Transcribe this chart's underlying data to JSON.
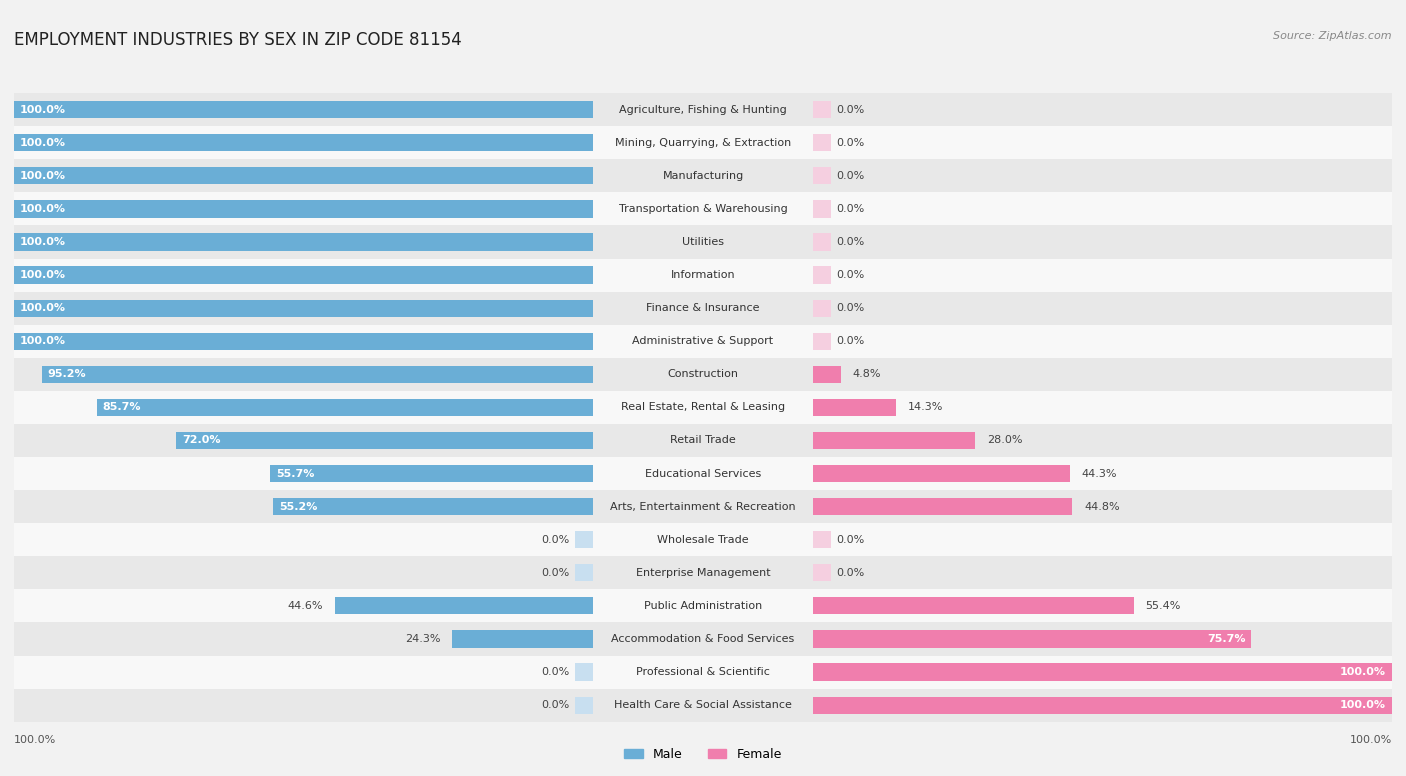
{
  "title": "EMPLOYMENT INDUSTRIES BY SEX IN ZIP CODE 81154",
  "source": "Source: ZipAtlas.com",
  "categories": [
    "Agriculture, Fishing & Hunting",
    "Mining, Quarrying, & Extraction",
    "Manufacturing",
    "Transportation & Warehousing",
    "Utilities",
    "Information",
    "Finance & Insurance",
    "Administrative & Support",
    "Construction",
    "Real Estate, Rental & Leasing",
    "Retail Trade",
    "Educational Services",
    "Arts, Entertainment & Recreation",
    "Wholesale Trade",
    "Enterprise Management",
    "Public Administration",
    "Accommodation & Food Services",
    "Professional & Scientific",
    "Health Care & Social Assistance"
  ],
  "male": [
    100.0,
    100.0,
    100.0,
    100.0,
    100.0,
    100.0,
    100.0,
    100.0,
    95.2,
    85.7,
    72.0,
    55.7,
    55.2,
    0.0,
    0.0,
    44.6,
    24.3,
    0.0,
    0.0
  ],
  "female": [
    0.0,
    0.0,
    0.0,
    0.0,
    0.0,
    0.0,
    0.0,
    0.0,
    4.8,
    14.3,
    28.0,
    44.3,
    44.8,
    0.0,
    0.0,
    55.4,
    75.7,
    100.0,
    100.0
  ],
  "male_color": "#6aaed6",
  "female_color": "#f07ead",
  "male_color_faint": "#c8dff0",
  "female_color_faint": "#f5cfe0",
  "bg_color": "#f2f2f2",
  "row_color_odd": "#e8e8e8",
  "row_color_even": "#f8f8f8",
  "title_fontsize": 12,
  "label_fontsize": 8,
  "pct_fontsize": 8,
  "legend_fontsize": 9,
  "bar_height": 0.52
}
